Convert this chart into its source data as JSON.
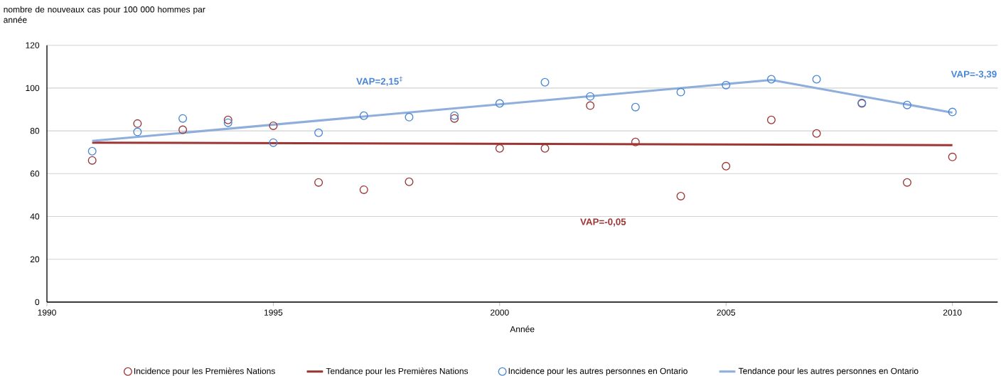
{
  "chart_data": {
    "type": "scatter",
    "ylabel": "nombre de nouveaux cas pour 100 000 hommes par année",
    "xlabel": "Année",
    "xlim": [
      1990,
      2011
    ],
    "xticks": [
      1990,
      1995,
      2000,
      2005,
      2010
    ],
    "ylim": [
      0,
      120
    ],
    "yticks": [
      0,
      20,
      40,
      60,
      80,
      100,
      120
    ],
    "grid": "y",
    "legend": "bottom",
    "series": [
      {
        "name": "Incidence pour les Premières Nations",
        "marker": "circle",
        "color": "#9e3535",
        "x": [
          1991,
          1992,
          1993,
          1994,
          1995,
          1996,
          1997,
          1998,
          1999,
          2000,
          2001,
          2002,
          2003,
          2004,
          2005,
          2006,
          2007,
          2008,
          2009,
          2010
        ],
        "values": [
          66.2,
          83.4,
          80.5,
          85.1,
          82.4,
          55.9,
          52.5,
          56.2,
          85.8,
          71.8,
          71.8,
          91.8,
          74.8,
          49.5,
          63.5,
          85.1,
          78.8,
          92.8,
          55.9,
          67.8
        ]
      },
      {
        "name": "Tendance pour les Premières Nations",
        "type": "line",
        "marker": "none",
        "color": "#9e3535",
        "x": [
          1991,
          2010
        ],
        "values": [
          74.5,
          73.3
        ]
      },
      {
        "name": "Incidence pour les autres personnes en Ontario",
        "marker": "circle",
        "color": "#4a86d8",
        "x": [
          1991,
          1992,
          1993,
          1994,
          1995,
          1996,
          1997,
          1998,
          1999,
          2000,
          2001,
          2002,
          2003,
          2004,
          2005,
          2006,
          2007,
          2008,
          2009,
          2010
        ],
        "values": [
          70.5,
          79.5,
          85.8,
          83.8,
          74.5,
          79.1,
          87.1,
          86.4,
          87.1,
          92.8,
          102.7,
          96.1,
          91.1,
          98.1,
          101.4,
          104.1,
          104.1,
          93.1,
          92.1,
          88.8
        ]
      },
      {
        "name": "Tendance pour les autres personnes en Ontario",
        "type": "line",
        "marker": "none",
        "color": "#8eaedb",
        "x": [
          1991,
          2006,
          2010
        ],
        "values": [
          75.3,
          103.8,
          88.5
        ]
      }
    ],
    "annotations": [
      "VAP=2,15$^{‡}$",
      "VAP=-0,05",
      "VAP=-3,39"
    ]
  }
}
